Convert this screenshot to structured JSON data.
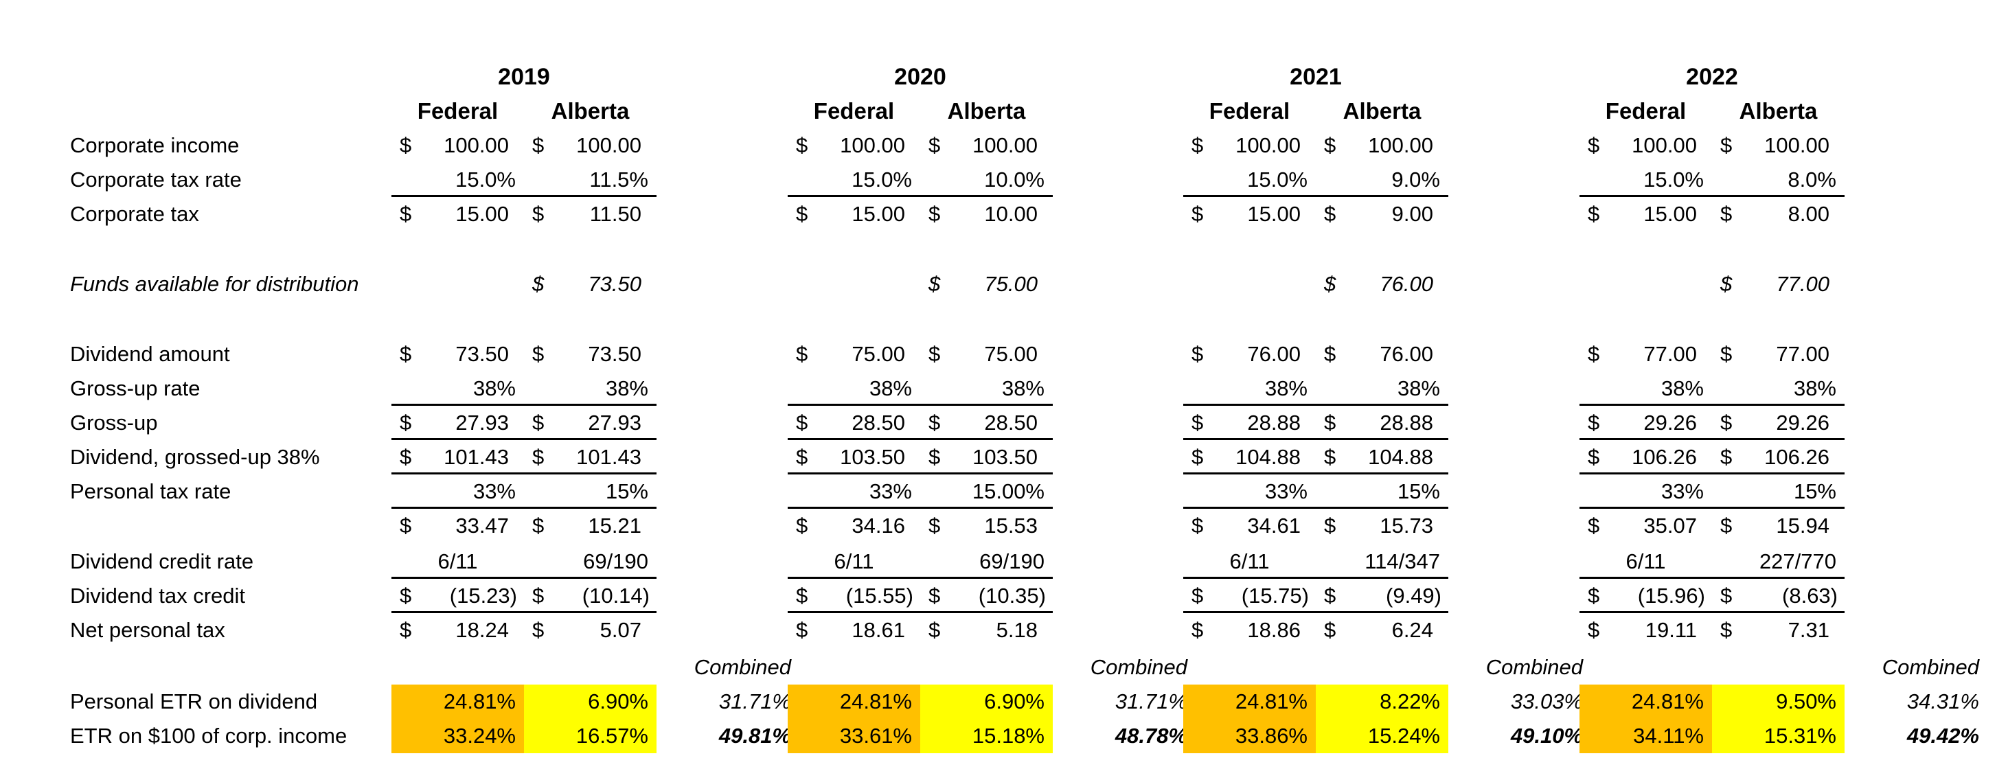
{
  "labels": {
    "corporate_income": "Corporate income",
    "corporate_tax_rate": "Corporate tax rate",
    "corporate_tax": "Corporate tax",
    "funds_available": "Funds available for distribution",
    "dividend_amount": "Dividend amount",
    "gross_up_rate": "Gross-up rate",
    "gross_up": "Gross-up",
    "dividend_grossed_up": "Dividend, grossed-up 38%",
    "personal_tax_rate": "Personal tax rate",
    "dividend_credit_rate": "Dividend credit rate",
    "dividend_tax_credit": "Dividend tax credit",
    "net_personal_tax": "Net personal tax",
    "personal_etr": "Personal ETR on dividend",
    "etr_corp_income": "ETR on $100 of corp. income"
  },
  "headers": {
    "federal": "Federal",
    "alberta": "Alberta",
    "combined": "Combined"
  },
  "colors": {
    "federal_highlight": "#FFC000",
    "alberta_highlight": "#FFFF00"
  },
  "years": [
    {
      "year": "2019",
      "federal": {
        "corporate_income": "100.00",
        "corporate_tax_rate": "15.0%",
        "corporate_tax": "15.00",
        "dividend_amount": "73.50",
        "gross_up_rate": "38%",
        "gross_up": "27.93",
        "dividend_grossed_up": "101.43",
        "personal_tax_rate": "33%",
        "personal_tax": "33.47",
        "dividend_credit_rate": "6/11",
        "dividend_tax_credit": "(15.23)",
        "net_personal_tax": "18.24",
        "personal_etr": "24.81%",
        "etr_corp_income": "33.24%"
      },
      "alberta": {
        "corporate_income": "100.00",
        "corporate_tax_rate": "11.5%",
        "corporate_tax": "11.50",
        "funds_available": "73.50",
        "dividend_amount": "73.50",
        "gross_up_rate": "38%",
        "gross_up": "27.93",
        "dividend_grossed_up": "101.43",
        "personal_tax_rate": "15%",
        "personal_tax": "15.21",
        "dividend_credit_rate": "69/190",
        "dividend_tax_credit": "(10.14)",
        "net_personal_tax": "5.07",
        "personal_etr": "6.90%",
        "etr_corp_income": "16.57%"
      },
      "combined": {
        "personal_etr": "31.71%",
        "etr_corp_income": "49.81%"
      }
    },
    {
      "year": "2020",
      "federal": {
        "corporate_income": "100.00",
        "corporate_tax_rate": "15.0%",
        "corporate_tax": "15.00",
        "dividend_amount": "75.00",
        "gross_up_rate": "38%",
        "gross_up": "28.50",
        "dividend_grossed_up": "103.50",
        "personal_tax_rate": "33%",
        "personal_tax": "34.16",
        "dividend_credit_rate": "6/11",
        "dividend_tax_credit": "(15.55)",
        "net_personal_tax": "18.61",
        "personal_etr": "24.81%",
        "etr_corp_income": "33.61%"
      },
      "alberta": {
        "corporate_income": "100.00",
        "corporate_tax_rate": "10.0%",
        "corporate_tax": "10.00",
        "funds_available": "75.00",
        "dividend_amount": "75.00",
        "gross_up_rate": "38%",
        "gross_up": "28.50",
        "dividend_grossed_up": "103.50",
        "personal_tax_rate": "15.00%",
        "personal_tax": "15.53",
        "dividend_credit_rate": "69/190",
        "dividend_tax_credit": "(10.35)",
        "net_personal_tax": "5.18",
        "personal_etr": "6.90%",
        "etr_corp_income": "15.18%"
      },
      "combined": {
        "personal_etr": "31.71%",
        "etr_corp_income": "48.78%"
      }
    },
    {
      "year": "2021",
      "federal": {
        "corporate_income": "100.00",
        "corporate_tax_rate": "15.0%",
        "corporate_tax": "15.00",
        "dividend_amount": "76.00",
        "gross_up_rate": "38%",
        "gross_up": "28.88",
        "dividend_grossed_up": "104.88",
        "personal_tax_rate": "33%",
        "personal_tax": "34.61",
        "dividend_credit_rate": "6/11",
        "dividend_tax_credit": "(15.75)",
        "net_personal_tax": "18.86",
        "personal_etr": "24.81%",
        "etr_corp_income": "33.86%"
      },
      "alberta": {
        "corporate_income": "100.00",
        "corporate_tax_rate": "9.0%",
        "corporate_tax": "9.00",
        "funds_available": "76.00",
        "dividend_amount": "76.00",
        "gross_up_rate": "38%",
        "gross_up": "28.88",
        "dividend_grossed_up": "104.88",
        "personal_tax_rate": "15%",
        "personal_tax": "15.73",
        "dividend_credit_rate": "114/347",
        "dividend_tax_credit": "(9.49)",
        "net_personal_tax": "6.24",
        "personal_etr": "8.22%",
        "etr_corp_income": "15.24%"
      },
      "combined": {
        "personal_etr": "33.03%",
        "etr_corp_income": "49.10%"
      }
    },
    {
      "year": "2022",
      "federal": {
        "corporate_income": "100.00",
        "corporate_tax_rate": "15.0%",
        "corporate_tax": "15.00",
        "dividend_amount": "77.00",
        "gross_up_rate": "38%",
        "gross_up": "29.26",
        "dividend_grossed_up": "106.26",
        "personal_tax_rate": "33%",
        "personal_tax": "35.07",
        "dividend_credit_rate": "6/11",
        "dividend_tax_credit": "(15.96)",
        "net_personal_tax": "19.11",
        "personal_etr": "24.81%",
        "etr_corp_income": "34.11%"
      },
      "alberta": {
        "corporate_income": "100.00",
        "corporate_tax_rate": "8.0%",
        "corporate_tax": "8.00",
        "funds_available": "77.00",
        "dividend_amount": "77.00",
        "gross_up_rate": "38%",
        "gross_up": "29.26",
        "dividend_grossed_up": "106.26",
        "personal_tax_rate": "15%",
        "personal_tax": "15.94",
        "dividend_credit_rate": "227/770",
        "dividend_tax_credit": "(8.63)",
        "net_personal_tax": "7.31",
        "personal_etr": "9.50%",
        "etr_corp_income": "15.31%"
      },
      "combined": {
        "personal_etr": "34.31%",
        "etr_corp_income": "49.42%"
      }
    }
  ]
}
